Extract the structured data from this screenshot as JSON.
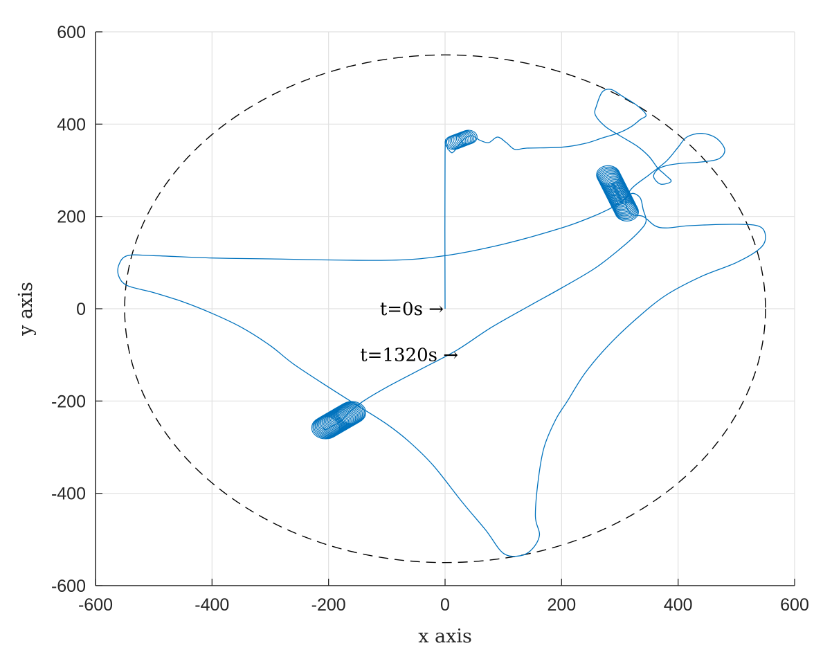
{
  "chart_data": {
    "type": "line",
    "title": "",
    "xlabel": "x axis",
    "ylabel": "y axis",
    "xlim": [
      -600,
      600
    ],
    "ylim": [
      -600,
      600
    ],
    "xticks": [
      -600,
      -400,
      -200,
      0,
      200,
      400,
      600
    ],
    "yticks": [
      -600,
      -400,
      -200,
      0,
      200,
      400,
      600
    ],
    "xtick_labels": [
      "-600",
      "-400",
      "-200",
      "0",
      "200",
      "400",
      "600"
    ],
    "ytick_labels": [
      "-600",
      "-400",
      "-200",
      "0",
      "200",
      "400",
      "600"
    ],
    "grid": true,
    "legend": "none",
    "colors": {
      "trajectory": "#0072BD",
      "boundary": "#000000",
      "grid": "#e0e0e0",
      "axes": "#262626"
    },
    "boundary_circle": {
      "center": [
        0,
        0
      ],
      "radius": 550,
      "style": "dashed"
    },
    "annotations": [
      {
        "text": "t=0s →",
        "x": 0,
        "y": 0
      },
      {
        "text": "t=1320s →",
        "x": 25,
        "y": -100
      }
    ],
    "series": [
      {
        "style": "solid",
        "points": [
          [
            0,
            0
          ],
          [
            0,
            340
          ],
          [
            5,
            345
          ],
          [
            12,
            338
          ],
          [
            20,
            348
          ],
          [
            30,
            365
          ],
          [
            45,
            375
          ],
          [
            60,
            365
          ],
          [
            75,
            360
          ],
          [
            90,
            372
          ],
          [
            105,
            360
          ],
          [
            120,
            345
          ],
          [
            140,
            348
          ],
          [
            200,
            350
          ],
          [
            240,
            358
          ],
          [
            270,
            370
          ],
          [
            300,
            382
          ],
          [
            320,
            395
          ],
          [
            335,
            410
          ],
          [
            345,
            420
          ],
          [
            330,
            440
          ],
          [
            305,
            460
          ],
          [
            285,
            475
          ],
          [
            270,
            470
          ],
          [
            260,
            440
          ],
          [
            258,
            420
          ],
          [
            275,
            395
          ],
          [
            300,
            375
          ],
          [
            330,
            352
          ],
          [
            350,
            330
          ],
          [
            365,
            305
          ],
          [
            378,
            290
          ],
          [
            388,
            276
          ],
          [
            370,
            270
          ],
          [
            358,
            286
          ],
          [
            365,
            302
          ],
          [
            380,
            310
          ],
          [
            405,
            315
          ],
          [
            440,
            318
          ],
          [
            470,
            325
          ],
          [
            480,
            345
          ],
          [
            465,
            370
          ],
          [
            440,
            380
          ],
          [
            415,
            372
          ],
          [
            400,
            350
          ],
          [
            380,
            320
          ],
          [
            350,
            290
          ],
          [
            320,
            260
          ],
          [
            310,
            230
          ],
          [
            320,
            205
          ],
          [
            340,
            200
          ],
          [
            360,
            180
          ],
          [
            380,
            175
          ],
          [
            420,
            180
          ],
          [
            500,
            183
          ],
          [
            540,
            178
          ],
          [
            550,
            155
          ],
          [
            540,
            130
          ],
          [
            500,
            100
          ],
          [
            440,
            70
          ],
          [
            380,
            30
          ],
          [
            330,
            -20
          ],
          [
            280,
            -80
          ],
          [
            240,
            -140
          ],
          [
            210,
            -200
          ],
          [
            190,
            -240
          ],
          [
            170,
            -300
          ],
          [
            160,
            -370
          ],
          [
            155,
            -450
          ],
          [
            162,
            -490
          ],
          [
            150,
            -520
          ],
          [
            130,
            -535
          ],
          [
            100,
            -530
          ],
          [
            70,
            -480
          ],
          [
            30,
            -420
          ],
          [
            -20,
            -340
          ],
          [
            -60,
            -290
          ],
          [
            -100,
            -250
          ],
          [
            -150,
            -210
          ],
          [
            -200,
            -170
          ],
          [
            -260,
            -120
          ],
          [
            -300,
            -80
          ],
          [
            -350,
            -40
          ],
          [
            -400,
            -10
          ],
          [
            -450,
            15
          ],
          [
            -500,
            35
          ],
          [
            -545,
            50
          ],
          [
            -560,
            70
          ],
          [
            -560,
            95
          ],
          [
            -545,
            115
          ],
          [
            -500,
            115
          ],
          [
            -400,
            110
          ],
          [
            -300,
            108
          ],
          [
            -100,
            105
          ],
          [
            0,
            115
          ],
          [
            100,
            140
          ],
          [
            200,
            175
          ],
          [
            250,
            198
          ],
          [
            280,
            215
          ],
          [
            300,
            230
          ],
          [
            310,
            240
          ],
          [
            322,
            250
          ],
          [
            335,
            240
          ],
          [
            340,
            215
          ],
          [
            345,
            190
          ],
          [
            335,
            170
          ],
          [
            310,
            140
          ],
          [
            260,
            90
          ],
          [
            200,
            45
          ],
          [
            150,
            10
          ],
          [
            80,
            -40
          ],
          [
            20,
            -90
          ],
          [
            -40,
            -130
          ],
          [
            -100,
            -170
          ],
          [
            -140,
            -200
          ],
          [
            -165,
            -225
          ],
          [
            -180,
            -245
          ],
          [
            -195,
            -255
          ],
          [
            -205,
            -262
          ],
          [
            -210,
            -258
          ]
        ]
      }
    ],
    "loop_clusters": [
      {
        "center_start": [
          15,
          360
        ],
        "center_end": [
          40,
          372
        ],
        "radius": 15,
        "count": 10
      },
      {
        "center_start": [
          280,
          290
        ],
        "center_end": [
          312,
          210
        ],
        "radius": 20,
        "count": 30
      },
      {
        "center_start": [
          -205,
          -258
        ],
        "center_end": [
          -160,
          -225
        ],
        "radius": 24,
        "count": 24
      }
    ]
  }
}
